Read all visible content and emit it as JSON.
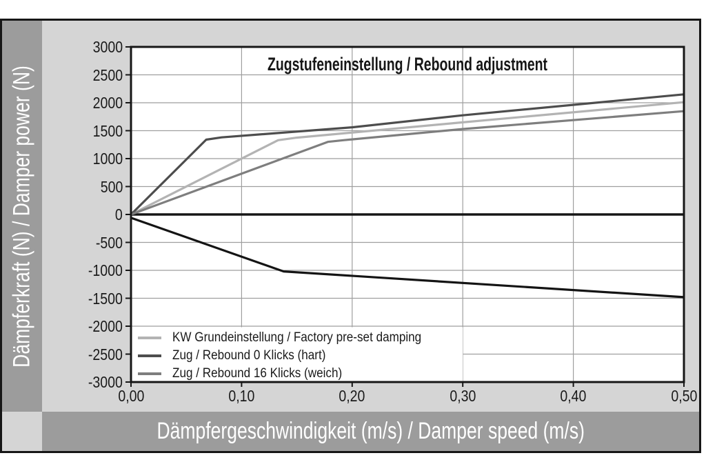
{
  "colors": {
    "page_background": "#ffffff",
    "frame_border": "#161616",
    "chart_background": "#d5d5d5",
    "axis_band_background": "#9c9c9c",
    "axis_band_text": "#ffffff",
    "plot_background": "#ffffff",
    "gridline": "#9e9e9e",
    "axis_and_zero_line": "#161616",
    "tick_text": "#1a1a1a"
  },
  "chart_data": {
    "type": "line",
    "title": "Zugstufeneinstellung / Rebound adjustment",
    "xlabel": "Dämpfergeschwindigkeit (m/s) / Damper speed (m/s)",
    "ylabel": "Dämpferkraft (N) / Damper power (N)",
    "xlim": [
      0,
      0.5
    ],
    "ylim": [
      -3000,
      3000
    ],
    "grid": true,
    "zero_line": true,
    "x_ticks": {
      "values": [
        0,
        0.1,
        0.2,
        0.3,
        0.4,
        0.5
      ],
      "labels": [
        "0,00",
        "0,10",
        "0,20",
        "0,30",
        "0,40",
        "0,50"
      ]
    },
    "y_ticks": {
      "values": [
        3000,
        2500,
        2000,
        1500,
        1000,
        500,
        0,
        -500,
        -1000,
        -1500,
        -2000,
        -2500,
        -3000
      ],
      "labels": [
        "3000",
        "2500",
        "2000",
        "1500",
        "1000",
        "500",
        "0",
        "-500",
        "-1000",
        "-1500",
        "-2000",
        "-2500",
        "-3000"
      ]
    },
    "legend": {
      "position": "inside-bottom-left",
      "entries": [
        "KW Grundeinstellung / Factory pre-set damping",
        "Zug / Rebound 0 Klicks (hart)",
        "Zug / Rebound 16 Klicks (weich)"
      ]
    },
    "series": [
      {
        "id": "factory-preset",
        "name": "KW Grundeinstellung / Factory pre-set damping",
        "color": "#b3b3b3",
        "in_legend": true,
        "points": [
          [
            0,
            0
          ],
          [
            0.133,
            1330
          ],
          [
            0.15,
            1375
          ],
          [
            0.3,
            1650
          ],
          [
            0.5,
            2010
          ]
        ]
      },
      {
        "id": "rebound-0-klicks-hart",
        "name": "Zug / Rebound 0 Klicks (hart)",
        "color": "#4d4d4d",
        "in_legend": true,
        "points": [
          [
            0,
            0
          ],
          [
            0.068,
            1340
          ],
          [
            0.082,
            1380
          ],
          [
            0.2,
            1560
          ],
          [
            0.3,
            1775
          ],
          [
            0.5,
            2150
          ]
        ]
      },
      {
        "id": "rebound-16-klicks-weich",
        "name": "Zug / Rebound 16 Klicks (weich)",
        "color": "#7e7e7e",
        "in_legend": true,
        "points": [
          [
            0,
            0
          ],
          [
            0.178,
            1300
          ],
          [
            0.192,
            1330
          ],
          [
            0.3,
            1530
          ],
          [
            0.5,
            1850
          ]
        ]
      },
      {
        "id": "compression-curve-unlabeled",
        "name": "",
        "color": "#141414",
        "in_legend": false,
        "points": [
          [
            0,
            -60
          ],
          [
            0.138,
            -1020
          ],
          [
            0.5,
            -1480
          ]
        ]
      }
    ]
  }
}
